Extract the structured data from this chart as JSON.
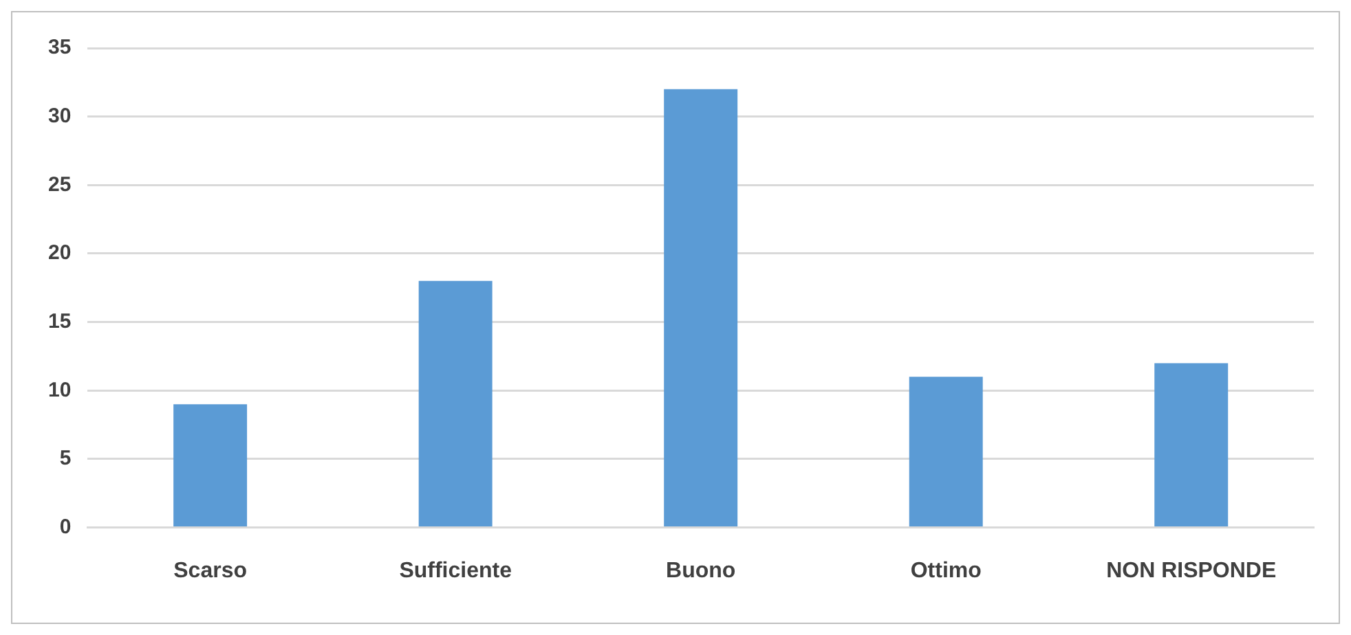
{
  "chart_data": {
    "type": "bar",
    "categories": [
      "Scarso",
      "Sufficiente",
      "Buono",
      "Ottimo",
      "NON RISPONDE"
    ],
    "values": [
      9,
      18,
      32,
      11,
      12
    ],
    "color": "#5b9bd5",
    "ylim": [
      0,
      35
    ],
    "yticks": [
      0,
      5,
      10,
      15,
      20,
      25,
      30,
      35
    ],
    "grid": "y"
  }
}
